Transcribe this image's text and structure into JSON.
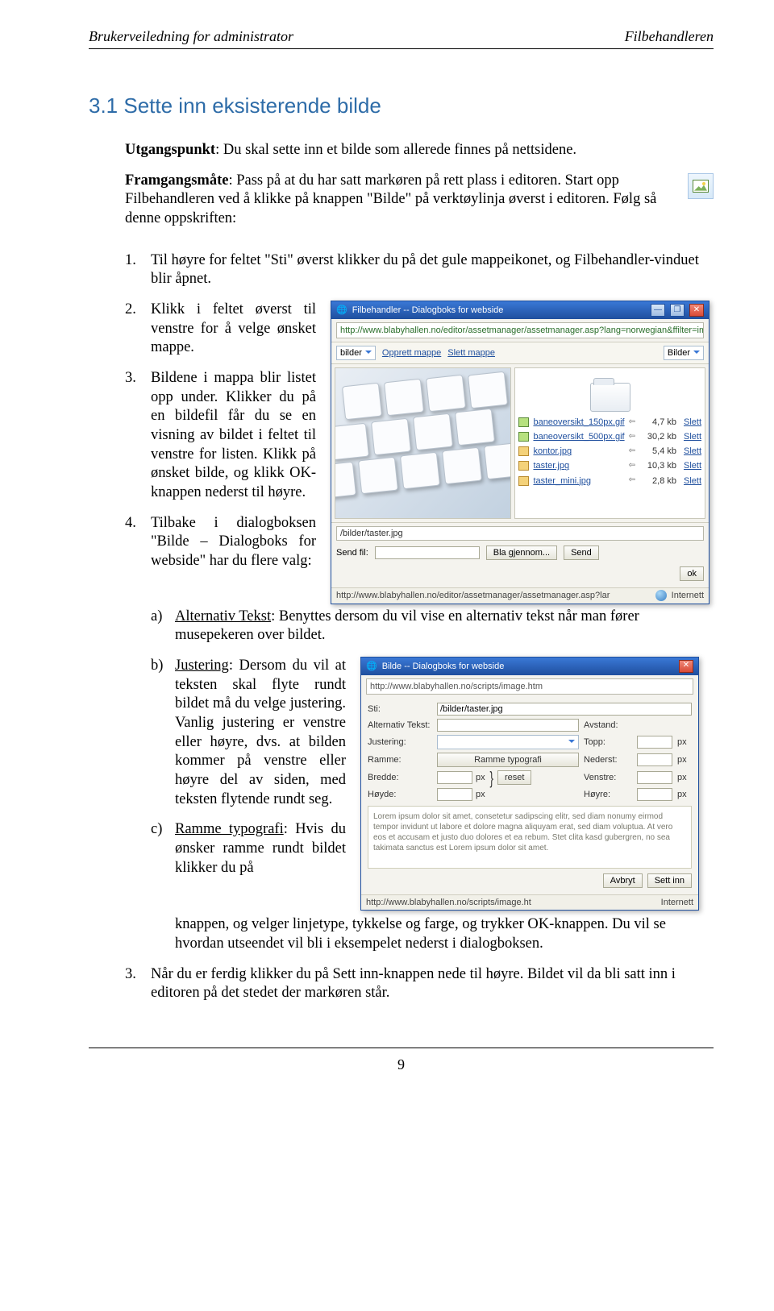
{
  "header": {
    "left": "Brukerveiledning for administrator",
    "right": "Filbehandleren"
  },
  "heading": "3.1 Sette inn eksisterende bilde",
  "intro": {
    "line1_label": "Utgangspunkt",
    "line1_rest": ": Du skal sette inn et bilde som allerede finnes på nettsidene.",
    "line2_label": "Framgangsmåte",
    "line2_rest": ": Pass på at du har satt markøren på rett plass i editoren. Start opp Filbehandleren ved å klikke på knappen \"Bilde\" på verktøylinja øverst i editoren. Følg så denne oppskriften:"
  },
  "steps": {
    "s1": "Til høyre for feltet \"Sti\" øverst klikker du på det gule mappeikonet, og Filbehandler-vinduet blir åpnet.",
    "s2": "Klikk i feltet øverst til venstre for å velge ønsket mappe.",
    "s3": "Bildene i mappa blir listet opp under. Klikker du på en bildefil får du se en visning av bildet i feltet til venstre for listen. Klikk på ønsket bilde, og klikk OK-knappen nederst til høyre.",
    "s4": "Tilbake i dialogboksen \"Bilde – Dialogboks for webside\" har du flere valg:",
    "s5": "Når du er ferdig klikker du på Sett inn-knappen nede til høyre. Bildet vil da bli satt inn i editoren på det stedet der markøren står."
  },
  "subs": {
    "a_label": "Alternativ Tekst",
    "a_rest": ": Benyttes dersom du vil vise en alternativ tekst når man fører musepekeren over bildet.",
    "b_label": "Justering",
    "b_rest": ": Dersom du vil at teksten skal flyte rundt bildet må du velge justering. Vanlig justering er venstre eller høyre, dvs. at bilden kommer på venstre eller høyre del av siden, med teksten flytende rundt seg.",
    "c_label": "Ramme typografi",
    "c_rest": ": Hvis du ønsker ramme rundt bildet klikker du på knappen, og velger linjetype, tykkelse og farge, og trykker OK-knappen. Du vil se hvordan utseendet vil bli i eksempelet nederst i dialogboksen."
  },
  "page_num": "9",
  "fb": {
    "title": "Filbehandler -- Dialogboks for webside",
    "addr": "http://www.blabyhallen.no/editor/assetmanager/assetmanager.asp?lang=norwegian&ffilter=image",
    "folder_sel": "bilder",
    "link_opprett": "Opprett mappe",
    "link_slett": "Slett mappe",
    "right_sel": "Bilder",
    "files": [
      {
        "name": "baneoversikt_150px.gif",
        "type": "gif",
        "size": "4,7 kb"
      },
      {
        "name": "baneoversikt_500px.gif",
        "type": "gif",
        "size": "30,2 kb"
      },
      {
        "name": "kontor.jpg",
        "type": "jpg",
        "size": "5,4 kb"
      },
      {
        "name": "taster.jpg",
        "type": "jpg",
        "size": "10,3 kb"
      },
      {
        "name": "taster_mini.jpg",
        "type": "jpg",
        "size": "2,8 kb"
      }
    ],
    "del": "Slett",
    "path": "/bilder/taster.jpg",
    "send_label": "Send fil:",
    "browse": "Bla gjennom...",
    "send_btn": "Send",
    "ok": "ok",
    "status_url": "http://www.blabyhallen.no/editor/assetmanager/assetmanager.asp?lar",
    "status_zone": "Internett"
  },
  "bd": {
    "title": "Bilde -- Dialogboks for webside",
    "addr": "http://www.blabyhallen.no/scripts/image.htm",
    "labels": {
      "sti": "Sti:",
      "alt": "Alternativ Tekst:",
      "just": "Justering:",
      "ramme": "Ramme:",
      "bredde": "Bredde:",
      "hoyde": "Høyde:",
      "avstand": "Avstand:",
      "topp": "Topp:",
      "nederst": "Nederst:",
      "venstre": "Venstre:",
      "hoyre_m": "Høyre:"
    },
    "sti_val": "/bilder/taster.jpg",
    "ramme_btn": "Ramme typografi",
    "reset": "reset",
    "px": "px",
    "lorem": "Lorem ipsum dolor sit amet, consetetur sadipscing elitr, sed diam nonumy eirmod tempor invidunt ut labore et dolore magna aliquyam erat, sed diam voluptua. At vero eos et accusam et justo duo dolores et ea rebum. Stet clita kasd gubergren, no sea takimata sanctus est Lorem ipsum dolor sit amet.",
    "cancel": "Avbryt",
    "insert": "Sett inn",
    "status_url": "http://www.blabyhallen.no/scripts/image.ht",
    "status_zone": "Internett"
  }
}
